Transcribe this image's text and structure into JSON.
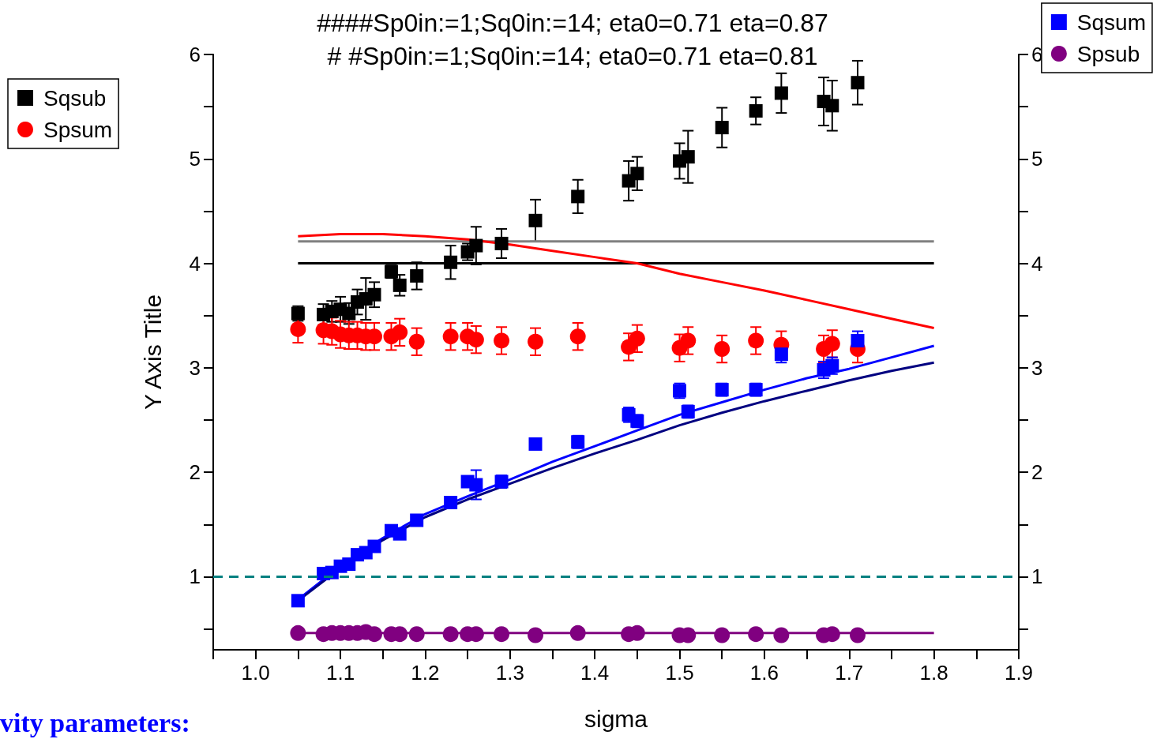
{
  "chart_data": {
    "type": "scatter",
    "title": "####Sp0in:=1;Sq0in:=14; eta0=0.71 eta=0.87",
    "subtitle": "# #Sp0in:=1;Sq0in:=14; eta0=0.71 eta=0.81",
    "xlabel": "sigma",
    "ylabel": "Y Axis Title",
    "annotations": [
      "vity parameters:"
    ],
    "x": [
      1.05,
      1.08,
      1.09,
      1.1,
      1.11,
      1.12,
      1.13,
      1.14,
      1.16,
      1.17,
      1.19,
      1.23,
      1.25,
      1.26,
      1.29,
      1.33,
      1.38,
      1.44,
      1.45,
      1.5,
      1.51,
      1.55,
      1.59,
      1.62,
      1.67,
      1.68,
      1.71
    ],
    "series": [
      {
        "name": "Sqsub",
        "color": "#000000",
        "marker": "square",
        "values": [
          3.52,
          3.51,
          3.54,
          3.56,
          3.52,
          3.63,
          3.66,
          3.7,
          3.92,
          3.79,
          3.88,
          4.01,
          4.11,
          4.17,
          4.19,
          4.41,
          4.64,
          4.79,
          4.86,
          4.98,
          5.02,
          5.3,
          5.46,
          5.63,
          5.55,
          5.51,
          5.73
        ],
        "errors": [
          0.07,
          0.1,
          0.1,
          0.12,
          0.1,
          0.12,
          0.2,
          0.12,
          0.06,
          0.1,
          0.13,
          0.16,
          0.08,
          0.18,
          0.14,
          0.2,
          0.16,
          0.19,
          0.16,
          0.17,
          0.25,
          0.19,
          0.13,
          0.19,
          0.23,
          0.24,
          0.21
        ]
      },
      {
        "name": "Spsum",
        "color": "#ff0000",
        "marker": "circle",
        "values": [
          3.37,
          3.36,
          3.35,
          3.32,
          3.31,
          3.31,
          3.3,
          3.3,
          3.3,
          3.34,
          3.25,
          3.3,
          3.3,
          3.27,
          3.26,
          3.25,
          3.3,
          3.2,
          3.28,
          3.19,
          3.26,
          3.18,
          3.26,
          3.22,
          3.18,
          3.23,
          3.18
        ],
        "errors": [
          0.13,
          0.13,
          0.13,
          0.13,
          0.13,
          0.13,
          0.13,
          0.13,
          0.13,
          0.13,
          0.13,
          0.13,
          0.13,
          0.13,
          0.13,
          0.13,
          0.13,
          0.13,
          0.13,
          0.13,
          0.13,
          0.13,
          0.13,
          0.13,
          0.13,
          0.13,
          0.13
        ]
      },
      {
        "name": "Sqsum",
        "color": "#0000ff",
        "marker": "square",
        "axis": "y2",
        "values": [
          0.77,
          1.03,
          1.04,
          1.1,
          1.12,
          1.21,
          1.23,
          1.29,
          1.44,
          1.41,
          1.54,
          1.71,
          1.91,
          1.88,
          1.91,
          2.27,
          2.29,
          2.55,
          2.49,
          2.78,
          2.58,
          2.79,
          2.79,
          3.13,
          2.98,
          3.02,
          3.26
        ],
        "errors": [
          0.05,
          0.05,
          0.05,
          0.05,
          0.05,
          0.05,
          0.05,
          0.05,
          0.05,
          0.05,
          0.05,
          0.05,
          0.05,
          0.14,
          0.06,
          0.05,
          0.06,
          0.07,
          0.06,
          0.07,
          0.06,
          0.06,
          0.06,
          0.08,
          0.08,
          0.08,
          0.09
        ]
      },
      {
        "name": "Spsub",
        "color": "#800080",
        "marker": "circle",
        "axis": "y2",
        "values": [
          0.46,
          0.45,
          0.46,
          0.46,
          0.46,
          0.46,
          0.47,
          0.45,
          0.45,
          0.45,
          0.45,
          0.45,
          0.45,
          0.45,
          0.45,
          0.44,
          0.46,
          0.45,
          0.46,
          0.44,
          0.44,
          0.44,
          0.45,
          0.44,
          0.44,
          0.45,
          0.44
        ]
      },
      {
        "type": "line",
        "color": "#808080",
        "marker": "none",
        "x": [
          1.05,
          1.8
        ],
        "values": [
          4.21,
          4.21
        ]
      },
      {
        "type": "line",
        "color": "#000000",
        "marker": "none",
        "x": [
          1.05,
          1.8
        ],
        "values": [
          4.0,
          4.0
        ]
      },
      {
        "type": "line",
        "color": "#ff0000",
        "marker": "none",
        "x": [
          1.05,
          1.1,
          1.15,
          1.2,
          1.25,
          1.3,
          1.35,
          1.4,
          1.45,
          1.5,
          1.55,
          1.6,
          1.65,
          1.7,
          1.75,
          1.8
        ],
        "values": [
          4.26,
          4.28,
          4.28,
          4.26,
          4.23,
          4.18,
          4.12,
          4.06,
          4.0,
          3.9,
          3.82,
          3.74,
          3.65,
          3.56,
          3.47,
          3.38
        ]
      },
      {
        "type": "line",
        "color": "#0000ff",
        "marker": "none",
        "axis": "y2",
        "x": [
          1.05,
          1.1,
          1.15,
          1.2,
          1.25,
          1.3,
          1.35,
          1.4,
          1.45,
          1.5,
          1.55,
          1.6,
          1.65,
          1.7,
          1.75,
          1.8
        ],
        "values": [
          0.78,
          1.1,
          1.37,
          1.6,
          1.77,
          1.93,
          2.1,
          2.25,
          2.4,
          2.55,
          2.67,
          2.79,
          2.9,
          2.99,
          3.1,
          3.21
        ]
      },
      {
        "type": "line",
        "color": "#000080",
        "marker": "none",
        "axis": "y2",
        "x": [
          1.05,
          1.1,
          1.15,
          1.2,
          1.25,
          1.3,
          1.35,
          1.4,
          1.45,
          1.5,
          1.55,
          1.6,
          1.65,
          1.7,
          1.75,
          1.8
        ],
        "values": [
          0.77,
          1.08,
          1.35,
          1.57,
          1.74,
          1.89,
          2.04,
          2.18,
          2.31,
          2.45,
          2.57,
          2.68,
          2.78,
          2.88,
          2.97,
          3.05
        ]
      },
      {
        "type": "line",
        "color": "#800080",
        "marker": "none",
        "axis": "y2",
        "x": [
          1.05,
          1.8
        ],
        "values": [
          0.46,
          0.46
        ]
      }
    ],
    "ref_lines": [
      {
        "axis": "y",
        "value": 1,
        "color": "#008080",
        "line_style": "dashed"
      }
    ],
    "xlim": [
      0.95,
      1.9
    ],
    "xticks": [
      {
        "value": 0.95,
        "label": null
      },
      {
        "value": 1.0,
        "label": "1.0"
      },
      {
        "value": 1.05,
        "label": null
      },
      1.1,
      {
        "value": 1.15,
        "label": null
      },
      1.2,
      {
        "value": 1.25,
        "label": null
      },
      1.3,
      {
        "value": 1.35,
        "label": null
      },
      1.4,
      {
        "value": 1.45,
        "label": null
      },
      1.5,
      {
        "value": 1.55,
        "label": null
      },
      1.6,
      {
        "value": 1.65,
        "label": null
      },
      1.7,
      {
        "value": 1.75,
        "label": null
      },
      1.8,
      {
        "value": 1.85,
        "label": null
      },
      1.9
    ],
    "ylim": [
      0.3,
      6
    ],
    "yticks": [
      {
        "value": 0.5,
        "label": null
      },
      1,
      {
        "value": 1.5,
        "label": null
      },
      2,
      {
        "value": 2.5,
        "label": null
      },
      3,
      {
        "value": 3.5,
        "label": null
      },
      4,
      {
        "value": 4.5,
        "label": null
      },
      5,
      {
        "value": 5.5,
        "label": null
      },
      6
    ],
    "y2lim": [
      0.3,
      6
    ],
    "y2ticks": [
      {
        "value": 0.5,
        "label": null
      },
      1,
      {
        "value": 1.5,
        "label": null
      },
      2,
      {
        "value": 2.5,
        "label": null
      },
      3,
      {
        "value": 3.5,
        "label": null
      },
      4,
      {
        "value": 4.5,
        "label": null
      },
      5,
      {
        "value": 5.5,
        "label": null
      },
      6
    ],
    "legend": "top",
    "grid": false
  }
}
